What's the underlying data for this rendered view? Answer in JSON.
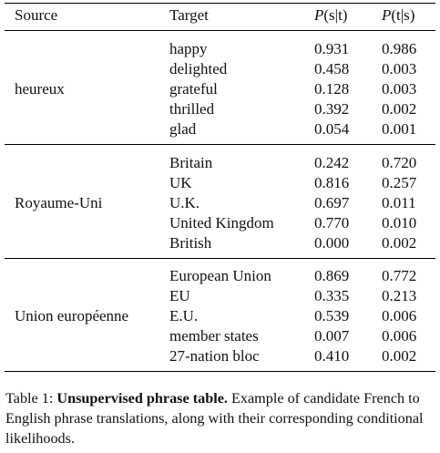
{
  "table": {
    "headers": {
      "source": "Source",
      "target": "Target",
      "p_s_given_t": {
        "p": "P",
        "args": "(s|t)"
      },
      "p_t_given_s": {
        "p": "P",
        "args": "(t|s)"
      }
    },
    "groups": [
      {
        "source": "heureux",
        "rows": [
          {
            "target": "happy",
            "p_st": "0.931",
            "p_ts": "0.986"
          },
          {
            "target": "delighted",
            "p_st": "0.458",
            "p_ts": "0.003"
          },
          {
            "target": "grateful",
            "p_st": "0.128",
            "p_ts": "0.003"
          },
          {
            "target": "thrilled",
            "p_st": "0.392",
            "p_ts": "0.002"
          },
          {
            "target": "glad",
            "p_st": "0.054",
            "p_ts": "0.001"
          }
        ]
      },
      {
        "source": "Royaume-Uni",
        "rows": [
          {
            "target": "Britain",
            "p_st": "0.242",
            "p_ts": "0.720"
          },
          {
            "target": "UK",
            "p_st": "0.816",
            "p_ts": "0.257"
          },
          {
            "target": "U.K.",
            "p_st": "0.697",
            "p_ts": "0.011"
          },
          {
            "target": "United Kingdom",
            "p_st": "0.770",
            "p_ts": "0.010"
          },
          {
            "target": "British",
            "p_st": "0.000",
            "p_ts": "0.002"
          }
        ]
      },
      {
        "source": "Union européenne",
        "rows": [
          {
            "target": "European Union",
            "p_st": "0.869",
            "p_ts": "0.772"
          },
          {
            "target": "EU",
            "p_st": "0.335",
            "p_ts": "0.213"
          },
          {
            "target": "E.U.",
            "p_st": "0.539",
            "p_ts": "0.006"
          },
          {
            "target": "member states",
            "p_st": "0.007",
            "p_ts": "0.006"
          },
          {
            "target": "27-nation bloc",
            "p_st": "0.410",
            "p_ts": "0.002"
          }
        ]
      }
    ]
  },
  "caption": {
    "label": "Table 1:",
    "title": "Unsupervised phrase table.",
    "text": "Example of candidate French to English phrase translations, along with their corresponding conditional likelihoods."
  }
}
